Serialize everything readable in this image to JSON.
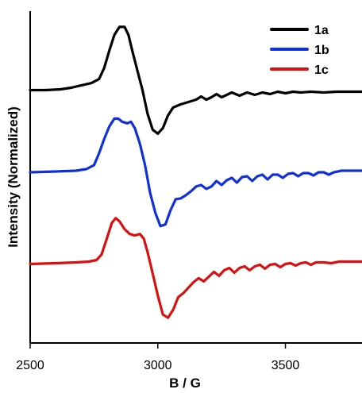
{
  "chart_data": {
    "type": "line",
    "title": "",
    "xlabel": "B / G",
    "ylabel": "Intensity (Normalized)",
    "xlim": [
      2500,
      3800
    ],
    "ylim": [
      -3.2,
      1.0
    ],
    "x_ticks": [
      2500,
      3000,
      3500
    ],
    "x_tick_labels": [
      "2500",
      "3000",
      "3500"
    ],
    "y_ticks_shown": false,
    "grid": false,
    "legend_position": "top-right",
    "series": [
      {
        "name": "1a",
        "color": "#000000",
        "points": [
          [
            2500,
            0.0
          ],
          [
            2560,
            0.0
          ],
          [
            2620,
            0.01
          ],
          [
            2660,
            0.03
          ],
          [
            2700,
            0.06
          ],
          [
            2740,
            0.09
          ],
          [
            2770,
            0.14
          ],
          [
            2790,
            0.28
          ],
          [
            2810,
            0.5
          ],
          [
            2830,
            0.7
          ],
          [
            2850,
            0.8
          ],
          [
            2870,
            0.8
          ],
          [
            2885,
            0.7
          ],
          [
            2900,
            0.5
          ],
          [
            2920,
            0.25
          ],
          [
            2940,
            0.0
          ],
          [
            2960,
            -0.3
          ],
          [
            2980,
            -0.5
          ],
          [
            3000,
            -0.55
          ],
          [
            3020,
            -0.48
          ],
          [
            3040,
            -0.32
          ],
          [
            3060,
            -0.22
          ],
          [
            3090,
            -0.18
          ],
          [
            3120,
            -0.15
          ],
          [
            3150,
            -0.12
          ],
          [
            3170,
            -0.08
          ],
          [
            3190,
            -0.12
          ],
          [
            3210,
            -0.09
          ],
          [
            3230,
            -0.05
          ],
          [
            3250,
            -0.09
          ],
          [
            3270,
            -0.06
          ],
          [
            3290,
            -0.03
          ],
          [
            3320,
            -0.07
          ],
          [
            3350,
            -0.03
          ],
          [
            3380,
            -0.06
          ],
          [
            3410,
            -0.03
          ],
          [
            3440,
            -0.05
          ],
          [
            3470,
            -0.02
          ],
          [
            3500,
            -0.04
          ],
          [
            3530,
            -0.02
          ],
          [
            3560,
            -0.03
          ],
          [
            3600,
            -0.02
          ],
          [
            3650,
            -0.03
          ],
          [
            3700,
            -0.02
          ],
          [
            3750,
            -0.02
          ],
          [
            3800,
            -0.02
          ]
        ]
      },
      {
        "name": "1b",
        "color": "#1030d8",
        "points": [
          [
            2500,
            -1.04
          ],
          [
            2600,
            -1.03
          ],
          [
            2680,
            -1.02
          ],
          [
            2720,
            -1.0
          ],
          [
            2750,
            -0.95
          ],
          [
            2770,
            -0.8
          ],
          [
            2790,
            -0.62
          ],
          [
            2810,
            -0.46
          ],
          [
            2830,
            -0.36
          ],
          [
            2845,
            -0.36
          ],
          [
            2860,
            -0.4
          ],
          [
            2880,
            -0.42
          ],
          [
            2895,
            -0.4
          ],
          [
            2910,
            -0.48
          ],
          [
            2930,
            -0.68
          ],
          [
            2950,
            -0.95
          ],
          [
            2970,
            -1.3
          ],
          [
            2990,
            -1.55
          ],
          [
            3010,
            -1.72
          ],
          [
            3030,
            -1.7
          ],
          [
            3050,
            -1.52
          ],
          [
            3070,
            -1.38
          ],
          [
            3090,
            -1.37
          ],
          [
            3110,
            -1.33
          ],
          [
            3130,
            -1.28
          ],
          [
            3150,
            -1.22
          ],
          [
            3170,
            -1.2
          ],
          [
            3190,
            -1.25
          ],
          [
            3210,
            -1.22
          ],
          [
            3230,
            -1.15
          ],
          [
            3250,
            -1.2
          ],
          [
            3270,
            -1.14
          ],
          [
            3290,
            -1.11
          ],
          [
            3310,
            -1.17
          ],
          [
            3330,
            -1.1
          ],
          [
            3350,
            -1.09
          ],
          [
            3370,
            -1.15
          ],
          [
            3390,
            -1.09
          ],
          [
            3410,
            -1.07
          ],
          [
            3430,
            -1.13
          ],
          [
            3450,
            -1.07
          ],
          [
            3470,
            -1.07
          ],
          [
            3490,
            -1.11
          ],
          [
            3510,
            -1.06
          ],
          [
            3530,
            -1.05
          ],
          [
            3550,
            -1.09
          ],
          [
            3570,
            -1.05
          ],
          [
            3590,
            -1.05
          ],
          [
            3610,
            -1.08
          ],
          [
            3630,
            -1.04
          ],
          [
            3650,
            -1.04
          ],
          [
            3670,
            -1.07
          ],
          [
            3690,
            -1.04
          ],
          [
            3720,
            -1.02
          ],
          [
            3760,
            -1.02
          ],
          [
            3800,
            -1.02
          ]
        ]
      },
      {
        "name": "1c",
        "color": "#d81010",
        "points": [
          [
            2500,
            -2.2
          ],
          [
            2600,
            -2.19
          ],
          [
            2680,
            -2.18
          ],
          [
            2730,
            -2.17
          ],
          [
            2760,
            -2.15
          ],
          [
            2780,
            -2.08
          ],
          [
            2800,
            -1.88
          ],
          [
            2820,
            -1.68
          ],
          [
            2835,
            -1.62
          ],
          [
            2850,
            -1.66
          ],
          [
            2870,
            -1.76
          ],
          [
            2890,
            -1.82
          ],
          [
            2910,
            -1.84
          ],
          [
            2930,
            -1.82
          ],
          [
            2945,
            -1.88
          ],
          [
            2960,
            -2.05
          ],
          [
            2980,
            -2.32
          ],
          [
            3000,
            -2.6
          ],
          [
            3020,
            -2.84
          ],
          [
            3040,
            -2.88
          ],
          [
            3060,
            -2.78
          ],
          [
            3080,
            -2.62
          ],
          [
            3100,
            -2.57
          ],
          [
            3120,
            -2.5
          ],
          [
            3140,
            -2.43
          ],
          [
            3160,
            -2.38
          ],
          [
            3180,
            -2.42
          ],
          [
            3200,
            -2.36
          ],
          [
            3220,
            -2.3
          ],
          [
            3240,
            -2.35
          ],
          [
            3260,
            -2.28
          ],
          [
            3280,
            -2.25
          ],
          [
            3300,
            -2.31
          ],
          [
            3320,
            -2.25
          ],
          [
            3340,
            -2.23
          ],
          [
            3360,
            -2.28
          ],
          [
            3380,
            -2.23
          ],
          [
            3400,
            -2.21
          ],
          [
            3420,
            -2.26
          ],
          [
            3440,
            -2.21
          ],
          [
            3460,
            -2.2
          ],
          [
            3480,
            -2.24
          ],
          [
            3500,
            -2.2
          ],
          [
            3520,
            -2.19
          ],
          [
            3540,
            -2.22
          ],
          [
            3560,
            -2.19
          ],
          [
            3580,
            -2.18
          ],
          [
            3600,
            -2.21
          ],
          [
            3620,
            -2.18
          ],
          [
            3650,
            -2.18
          ],
          [
            3680,
            -2.19
          ],
          [
            3710,
            -2.17
          ],
          [
            3750,
            -2.17
          ],
          [
            3800,
            -2.17
          ]
        ]
      }
    ]
  }
}
